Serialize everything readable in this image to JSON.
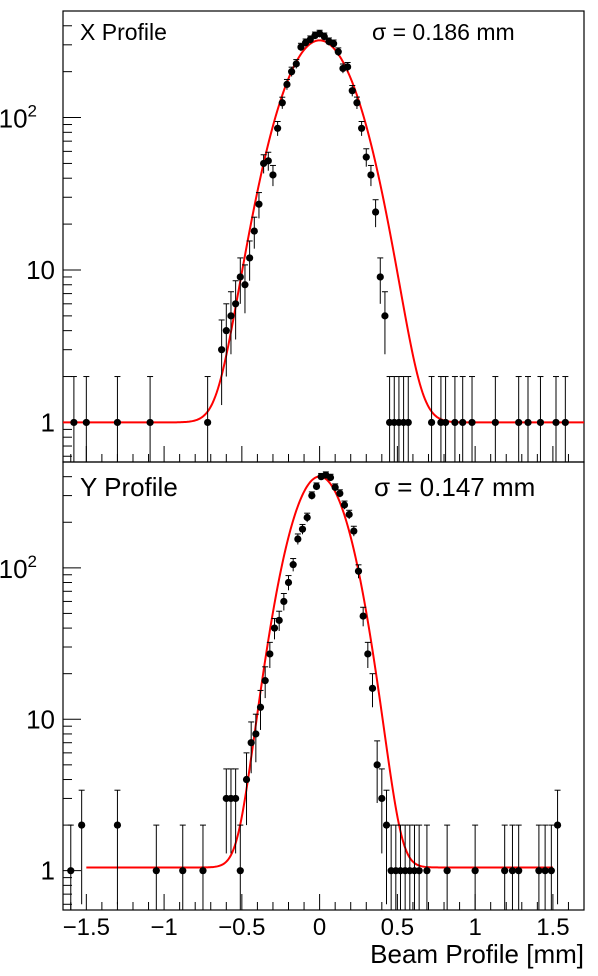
{
  "chart_data": [
    {
      "type": "scatter",
      "title": "X Profile",
      "annotation": "σ = 0.186 mm",
      "xlabel": "",
      "ylabel": "",
      "xlim": [
        -1.65,
        1.7
      ],
      "ylim": [
        0.55,
        500
      ],
      "yscale": "log",
      "ytick_labels": [
        {
          "value": 1,
          "label": "1"
        },
        {
          "value": 10,
          "label": "10"
        },
        {
          "value": 100,
          "label": "10",
          "sup": "2"
        }
      ],
      "grid": false,
      "colors": {
        "points": "#000000",
        "fit": "#ff0000"
      },
      "fit": {
        "amplitude": 320,
        "mean": 0.0,
        "sigma": 0.186,
        "baseline": 1.0
      },
      "series": [
        {
          "kind": "points",
          "x": [
            -1.58,
            -1.5,
            -1.3,
            -1.09,
            -0.72,
            -0.63,
            -0.6,
            -0.57,
            -0.54,
            -0.51,
            -0.48,
            -0.45,
            -0.42,
            -0.39,
            -0.36,
            -0.33,
            -0.3,
            -0.27,
            -0.24,
            -0.21,
            -0.18,
            -0.15,
            -0.12,
            -0.09,
            -0.06,
            -0.03,
            0.0,
            0.03,
            0.06,
            0.09,
            0.12,
            0.15,
            0.18,
            0.21,
            0.24,
            0.27,
            0.3,
            0.33,
            0.36,
            0.39,
            0.42,
            0.45,
            0.48,
            0.51,
            0.54,
            0.57,
            0.72,
            0.78,
            0.81,
            0.87,
            0.92,
            0.98,
            1.13,
            1.28,
            1.34,
            1.42,
            1.52,
            1.58
          ],
          "y": [
            1,
            1,
            1,
            1,
            1,
            3,
            4,
            5,
            6,
            9,
            8,
            12,
            18,
            27,
            50,
            52,
            42,
            85,
            125,
            165,
            200,
            225,
            290,
            310,
            325,
            345,
            355,
            340,
            315,
            305,
            270,
            210,
            215,
            150,
            125,
            85,
            55,
            42,
            24,
            9,
            5,
            1,
            1,
            1,
            1,
            1,
            1,
            1,
            1,
            1,
            1,
            1,
            1,
            1,
            1,
            1,
            1,
            1
          ],
          "err": [
            1,
            1,
            1,
            1,
            1,
            1.7,
            2,
            2.2,
            2.5,
            3,
            2.8,
            3.5,
            4.2,
            5.2,
            7,
            7.2,
            6.5,
            9.2,
            11,
            12.8,
            14,
            15,
            17,
            17.6,
            18,
            18.6,
            18.8,
            18.4,
            17.7,
            17.5,
            16.4,
            14.5,
            14.7,
            12.2,
            11.2,
            9.2,
            7.4,
            6.5,
            4.9,
            3,
            2.2,
            1,
            1,
            1,
            1,
            1,
            1,
            1,
            1,
            1,
            1,
            1,
            1,
            1,
            1,
            1,
            1,
            1
          ]
        }
      ]
    },
    {
      "type": "scatter",
      "title": "Y Profile",
      "annotation": "σ = 0.147 mm",
      "xlabel": "Beam Profile [mm]",
      "ylabel": "",
      "xlim": [
        -1.65,
        1.7
      ],
      "ylim": [
        0.55,
        500
      ],
      "yscale": "log",
      "xticks": [
        -1.5,
        -1,
        -0.5,
        0,
        0.5,
        1,
        1.5
      ],
      "xtick_labels": [
        "−1.5",
        "−1",
        "−0.5",
        "0",
        "0.5",
        "1",
        "1.5"
      ],
      "ytick_labels": [
        {
          "value": 1,
          "label": "1"
        },
        {
          "value": 10,
          "label": "10"
        },
        {
          "value": 100,
          "label": "10",
          "sup": "2"
        }
      ],
      "grid": false,
      "colors": {
        "points": "#000000",
        "fit": "#ff0000"
      },
      "fit": {
        "amplitude": 400,
        "mean": 0.0,
        "sigma": 0.147,
        "baseline": 1.05,
        "xrange": [
          -1.5,
          1.5
        ]
      },
      "series": [
        {
          "kind": "points",
          "x": [
            -1.6,
            -1.53,
            -1.3,
            -1.05,
            -0.88,
            -0.75,
            -0.6,
            -0.57,
            -0.54,
            -0.51,
            -0.47,
            -0.44,
            -0.41,
            -0.38,
            -0.35,
            -0.32,
            -0.29,
            -0.26,
            -0.23,
            -0.2,
            -0.17,
            -0.14,
            -0.11,
            -0.08,
            -0.05,
            -0.02,
            0.01,
            0.04,
            0.07,
            0.1,
            0.13,
            0.16,
            0.19,
            0.22,
            0.25,
            0.28,
            0.31,
            0.34,
            0.37,
            0.4,
            0.43,
            0.46,
            0.49,
            0.52,
            0.55,
            0.58,
            0.61,
            0.64,
            0.69,
            0.82,
            1.0,
            1.19,
            1.24,
            1.28,
            1.41,
            1.45,
            1.49,
            1.53
          ],
          "y": [
            1,
            2,
            2,
            1,
            1,
            1,
            3,
            3,
            3,
            1,
            4,
            7,
            8,
            12,
            18,
            27,
            40,
            45,
            60,
            80,
            105,
            155,
            180,
            215,
            300,
            345,
            400,
            410,
            395,
            340,
            310,
            260,
            225,
            175,
            95,
            48,
            27,
            16,
            5,
            3,
            2,
            1,
            1,
            1,
            1,
            1,
            1,
            1,
            1,
            1,
            1,
            1,
            1,
            1,
            1,
            1,
            1,
            2
          ],
          "err": [
            1,
            1.4,
            1.4,
            1,
            1,
            1,
            1.7,
            1.7,
            1.7,
            1,
            2,
            2.6,
            2.8,
            3.5,
            4.2,
            5.2,
            6.3,
            6.7,
            7.7,
            8.9,
            10.2,
            12.4,
            13.4,
            14.6,
            17.3,
            18.6,
            20,
            20.2,
            19.9,
            18.4,
            17.6,
            16.1,
            15,
            13.2,
            9.7,
            6.9,
            5.2,
            4,
            2.2,
            1.7,
            1.4,
            1,
            1,
            1,
            1,
            1,
            1,
            1,
            1,
            1,
            1,
            1,
            1,
            1,
            1,
            1,
            1,
            1.4
          ]
        }
      ]
    }
  ]
}
